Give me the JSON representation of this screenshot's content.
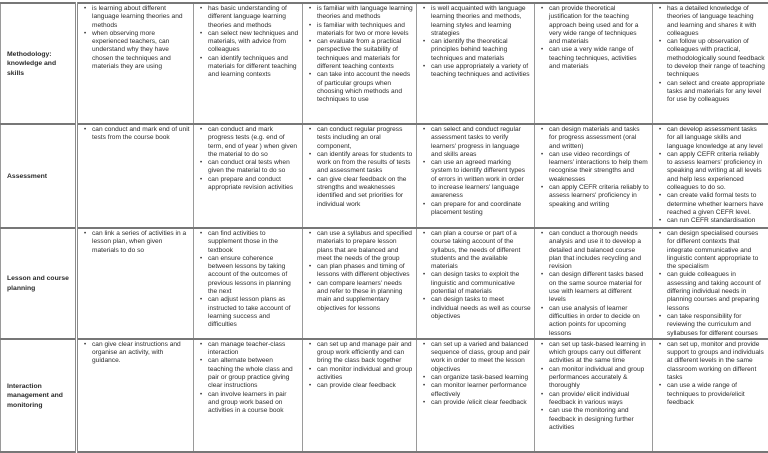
{
  "rows": [
    {
      "label": "Methodology: knowledge and skills",
      "cells": [
        [
          "is learning about different language learning theories and methods",
          "when observing more experienced teachers, can understand why they have chosen the techniques and materials they are using"
        ],
        [
          "has basic understanding of different language learning theories and methods",
          "can select new techniques and materials, with advice from colleagues",
          "can identify techniques and materials for different teaching and learning contexts"
        ],
        [
          "is familiar with language learning theories and methods",
          "is familiar with techniques and materials for two or more levels",
          "can evaluate from a practical perspective the suitability of techniques and materials for different teaching contexts",
          "can take into account the needs of particular groups when choosing which methods and techniques to use"
        ],
        [
          "is well acquainted with language learning theories and methods, learning styles and learning strategies",
          "can identify the theoretical principles behind teaching techniques and materials",
          "can use appropriately a variety of teaching techniques and activities"
        ],
        [
          "can provide theoretical justification for the teaching approach being used and for a very wide range of techniques and materials",
          "can use a very wide range of teaching techniques, activities and materials"
        ],
        [
          "has a detailed knowledge of theories of language teaching and learning and shares it with colleagues",
          "can follow up observation of colleagues with practical, methodologically sound feedback to develop their range of teaching techniques",
          "can select and create appropriate tasks and materials for any level for use by colleagues"
        ]
      ]
    },
    {
      "label": "Assessment",
      "cells": [
        [
          "can conduct and mark end of unit tests from the course book"
        ],
        [
          "can conduct and mark progress tests (e.g. end of term, end of year ) when given the material to do so",
          "can conduct oral tests when given the material to do so",
          "can prepare and conduct appropriate revision activities"
        ],
        [
          "can conduct regular progress tests including an oral component,",
          "can identify areas for students to work on from the results of tests and assessment tasks",
          "can give clear feedback on the strengths and weaknesses identified and set priorities for individual work"
        ],
        [
          "can select and conduct regular assessment tasks to verify learners' progress in language and skills areas",
          "can use an agreed marking system to identify different types of errors in written work in order to increase learners' language awareness",
          "can prepare for and coordinate placement testing"
        ],
        [
          "can design materials and tasks for progress assessment (oral and written)",
          "can use video recordings of learners' interactions to help them recognise their strengths and weaknesses",
          "can apply CEFR criteria reliably to assess learners' proficiency in speaking and writing"
        ],
        [
          "can develop assessment tasks for all language skills and language knowledge at any level",
          "can apply CEFR criteria reliably to assess learners' proficiency in speaking and writing at all levels and help less experienced colleagues to do so.",
          "can create valid formal tests to determine whether learners have reached a given CEFR level.",
          "can run CEFR standardisation"
        ]
      ]
    },
    {
      "label": "Lesson and course planning",
      "cells": [
        [
          "can link a series of activities in a lesson plan, when given materials to do so"
        ],
        [
          "can find activities to supplement those in the textbook",
          "can ensure coherence between lessons by taking account of the outcomes of previous lessons in planning the next",
          "can adjust lesson plans as instructed to take account of learning success and difficulties"
        ],
        [
          "can use a syllabus and specified materials to prepare lesson plans that are balanced and meet the needs of the group",
          "can plan phases and timing of lessons with different objectives",
          "can compare learners' needs and refer to these in planning main and supplementary objectives for lessons"
        ],
        [
          "can plan a course or part of a course taking account of the syllabus, the needs of different students and the available materials",
          "can design tasks to exploit the linguistic and communicative potential of materials",
          "can design tasks to meet individual needs as well as course objectives"
        ],
        [
          "can conduct a thorough needs analysis and use it to develop a detailed and balanced course plan that includes recycling and revision",
          "can design different tasks based on the same source material for use with learners at different levels",
          "can use analysis of learner difficulties in order to decide on action points for upcoming lessons"
        ],
        [
          "can design specialised courses for different contexts that integrate communicative and linguistic content appropriate to the specialism",
          "can guide colleagues in assessing and taking account of differing individual needs in planning courses and preparing lessons",
          "can take responsibility for reviewing the curriculum and syllabuses for different courses"
        ]
      ]
    },
    {
      "label": "Interaction management and monitoring",
      "cells": [
        [
          "can give clear instructions and organise an activity, with guidance."
        ],
        [
          "can manage teacher-class interaction",
          "can alternate between teaching the whole class and pair or group practice giving clear instructions",
          "can involve learners in pair and group work based on activities in a course book"
        ],
        [
          "can set up and manage pair and group work efficiently and can bring the class back together",
          "can monitor individual and group activities",
          "can provide clear feedback"
        ],
        [
          "can set up a varied and balanced sequence of class, group and pair work in order to meet the lesson objectives",
          "can organize task-based learning",
          "can monitor learner performance effectively",
          "can provide /elicit clear feedback"
        ],
        [
          "can set up task-based learning in which groups carry out different activities at the same time",
          "can monitor individual and group performances accurately & thoroughly",
          "can provide/ elicit individual feedback in various ways",
          "can use the monitoring and feedback in designing further activities"
        ],
        [
          "can set up, monitor and provide support to groups and individuals at different levels in the same classroom working on different tasks",
          "can use a wide range of techniques to provide/elicit feedback"
        ]
      ]
    }
  ]
}
